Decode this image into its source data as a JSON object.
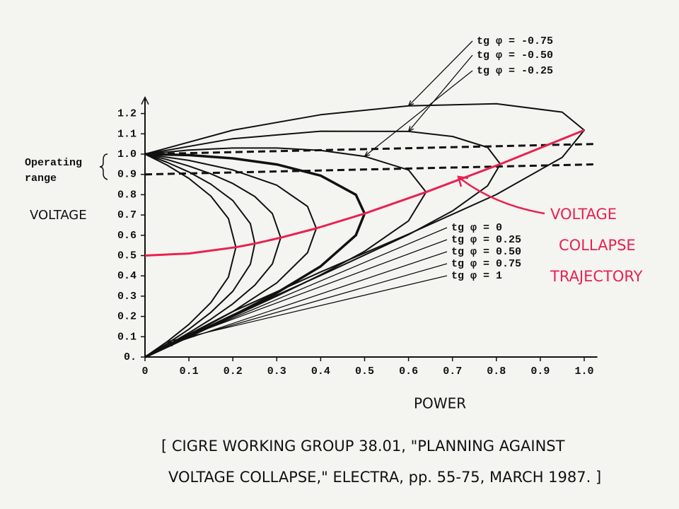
{
  "chart_data": {
    "type": "line",
    "x_label": "POWER",
    "y_label": "VOLTAGE",
    "operating_range_label": [
      "Operating",
      "range"
    ],
    "trajectory_label": [
      "VOLTAGE",
      "COLLAPSE",
      "TRAJECTORY"
    ],
    "source": [
      "[ CIGRE WORKING GROUP 38.01, \"PLANNING AGAINST",
      "VOLTAGE COLLAPSE,\" ELECTRA, pp. 55-75, MARCH 1987. ]"
    ],
    "xlim": [
      0,
      1.03
    ],
    "ylim": [
      0,
      1.28
    ],
    "xticks": [
      0,
      0.1,
      0.2,
      0.3,
      0.4,
      0.5,
      0.6,
      0.7,
      0.8,
      0.9,
      {
        "value": 1,
        "label": "1.0"
      }
    ],
    "yticks": [
      {
        "value": 0,
        "label": "0."
      },
      0.1,
      0.2,
      0.3,
      0.4,
      0.5,
      0.6,
      0.7,
      0.8,
      0.9,
      {
        "value": 1,
        "label": "1.0"
      },
      1.1,
      1.2
    ],
    "operating_range_lines": [
      {
        "x": [
          0,
          1.03
        ],
        "values": [
          1.0,
          1.05
        ]
      },
      {
        "x": [
          0,
          1.03
        ],
        "values": [
          0.9,
          0.95
        ]
      }
    ],
    "series": [
      {
        "name": "tg φ = -0.75",
        "color": "#111111",
        "line_width": 2,
        "x": [
          0,
          0.2,
          0.4,
          0.6,
          0.8,
          0.95,
          1.0,
          0.95,
          0.8,
          0.6,
          0.4,
          0.2,
          0
        ],
        "values": [
          1.0,
          1.118,
          1.194,
          1.238,
          1.248,
          1.207,
          1.118,
          0.984,
          0.801,
          0.606,
          0.419,
          0.224,
          0
        ]
      },
      {
        "name": "tg φ = -0.50",
        "color": "#111111",
        "line_width": 2,
        "x": [
          0,
          0.2,
          0.4,
          0.6,
          0.7,
          0.78,
          0.809,
          0.78,
          0.7,
          0.6,
          0.4,
          0.2,
          0
        ],
        "values": [
          1.0,
          1.076,
          1.113,
          1.112,
          1.087,
          1.033,
          0.951,
          0.844,
          0.72,
          0.603,
          0.402,
          0.208,
          0
        ]
      },
      {
        "name": "tg φ = -0.25",
        "color": "#111111",
        "line_width": 2,
        "x": [
          0,
          0.1,
          0.2,
          0.3,
          0.4,
          0.5,
          0.6,
          0.64,
          0.6,
          0.5,
          0.4,
          0.3,
          0.2,
          0.1,
          0
        ],
        "values": [
          1.0,
          1.02,
          1.03,
          1.03,
          1.018,
          0.989,
          0.922,
          0.813,
          0.671,
          0.521,
          0.405,
          0.3,
          0.2,
          0.101,
          0
        ]
      },
      {
        "name": "tg φ = 0",
        "color": "#111111",
        "line_width": 3.5,
        "x": [
          0,
          0.1,
          0.2,
          0.3,
          0.4,
          0.48,
          0.5,
          0.48,
          0.4,
          0.3,
          0.2,
          0.1,
          0
        ],
        "values": [
          1.0,
          0.995,
          0.979,
          0.949,
          0.894,
          0.8,
          0.707,
          0.6,
          0.447,
          0.316,
          0.204,
          0.101,
          0
        ]
      },
      {
        "name": "tg φ = 0.25",
        "color": "#111111",
        "line_width": 2,
        "x": [
          0,
          0.1,
          0.2,
          0.3,
          0.37,
          0.39,
          0.37,
          0.3,
          0.2,
          0.1,
          0
        ],
        "values": [
          1.0,
          0.969,
          0.922,
          0.847,
          0.742,
          0.634,
          0.514,
          0.365,
          0.224,
          0.106,
          0
        ]
      },
      {
        "name": "tg φ = 0.50",
        "color": "#111111",
        "line_width": 2,
        "x": [
          0,
          0.05,
          0.1,
          0.15,
          0.2,
          0.25,
          0.29,
          0.309,
          0.29,
          0.25,
          0.2,
          0.15,
          0.1,
          0.05,
          0
        ],
        "values": [
          1.0,
          0.973,
          0.941,
          0.903,
          0.855,
          0.791,
          0.707,
          0.588,
          0.459,
          0.354,
          0.262,
          0.186,
          0.119,
          0.057,
          0
        ]
      },
      {
        "name": "tg φ = 0.75",
        "color": "#111111",
        "line_width": 2,
        "x": [
          0,
          0.05,
          0.1,
          0.15,
          0.2,
          0.24,
          0.25,
          0.24,
          0.2,
          0.15,
          0.1,
          0.05,
          0
        ],
        "values": [
          1.0,
          0.96,
          0.912,
          0.852,
          0.771,
          0.657,
          0.559,
          0.457,
          0.324,
          0.22,
          0.137,
          0.065,
          0
        ]
      },
      {
        "name": "tg φ = 1",
        "color": "#111111",
        "line_width": 2,
        "x": [
          0,
          0.05,
          0.1,
          0.15,
          0.19,
          0.207,
          0.19,
          0.15,
          0.1,
          0.05,
          0
        ],
        "values": [
          1.0,
          0.946,
          0.88,
          0.793,
          0.682,
          0.541,
          0.394,
          0.268,
          0.161,
          0.075,
          0
        ]
      },
      {
        "color": "#e8214f",
        "line_width": 3,
        "x": [
          0,
          0.1,
          0.207,
          0.25,
          0.309,
          0.39,
          0.5,
          0.64,
          0.809,
          1.0
        ],
        "values": [
          0.5,
          0.51,
          0.541,
          0.559,
          0.588,
          0.634,
          0.707,
          0.813,
          0.951,
          1.118
        ]
      }
    ]
  }
}
